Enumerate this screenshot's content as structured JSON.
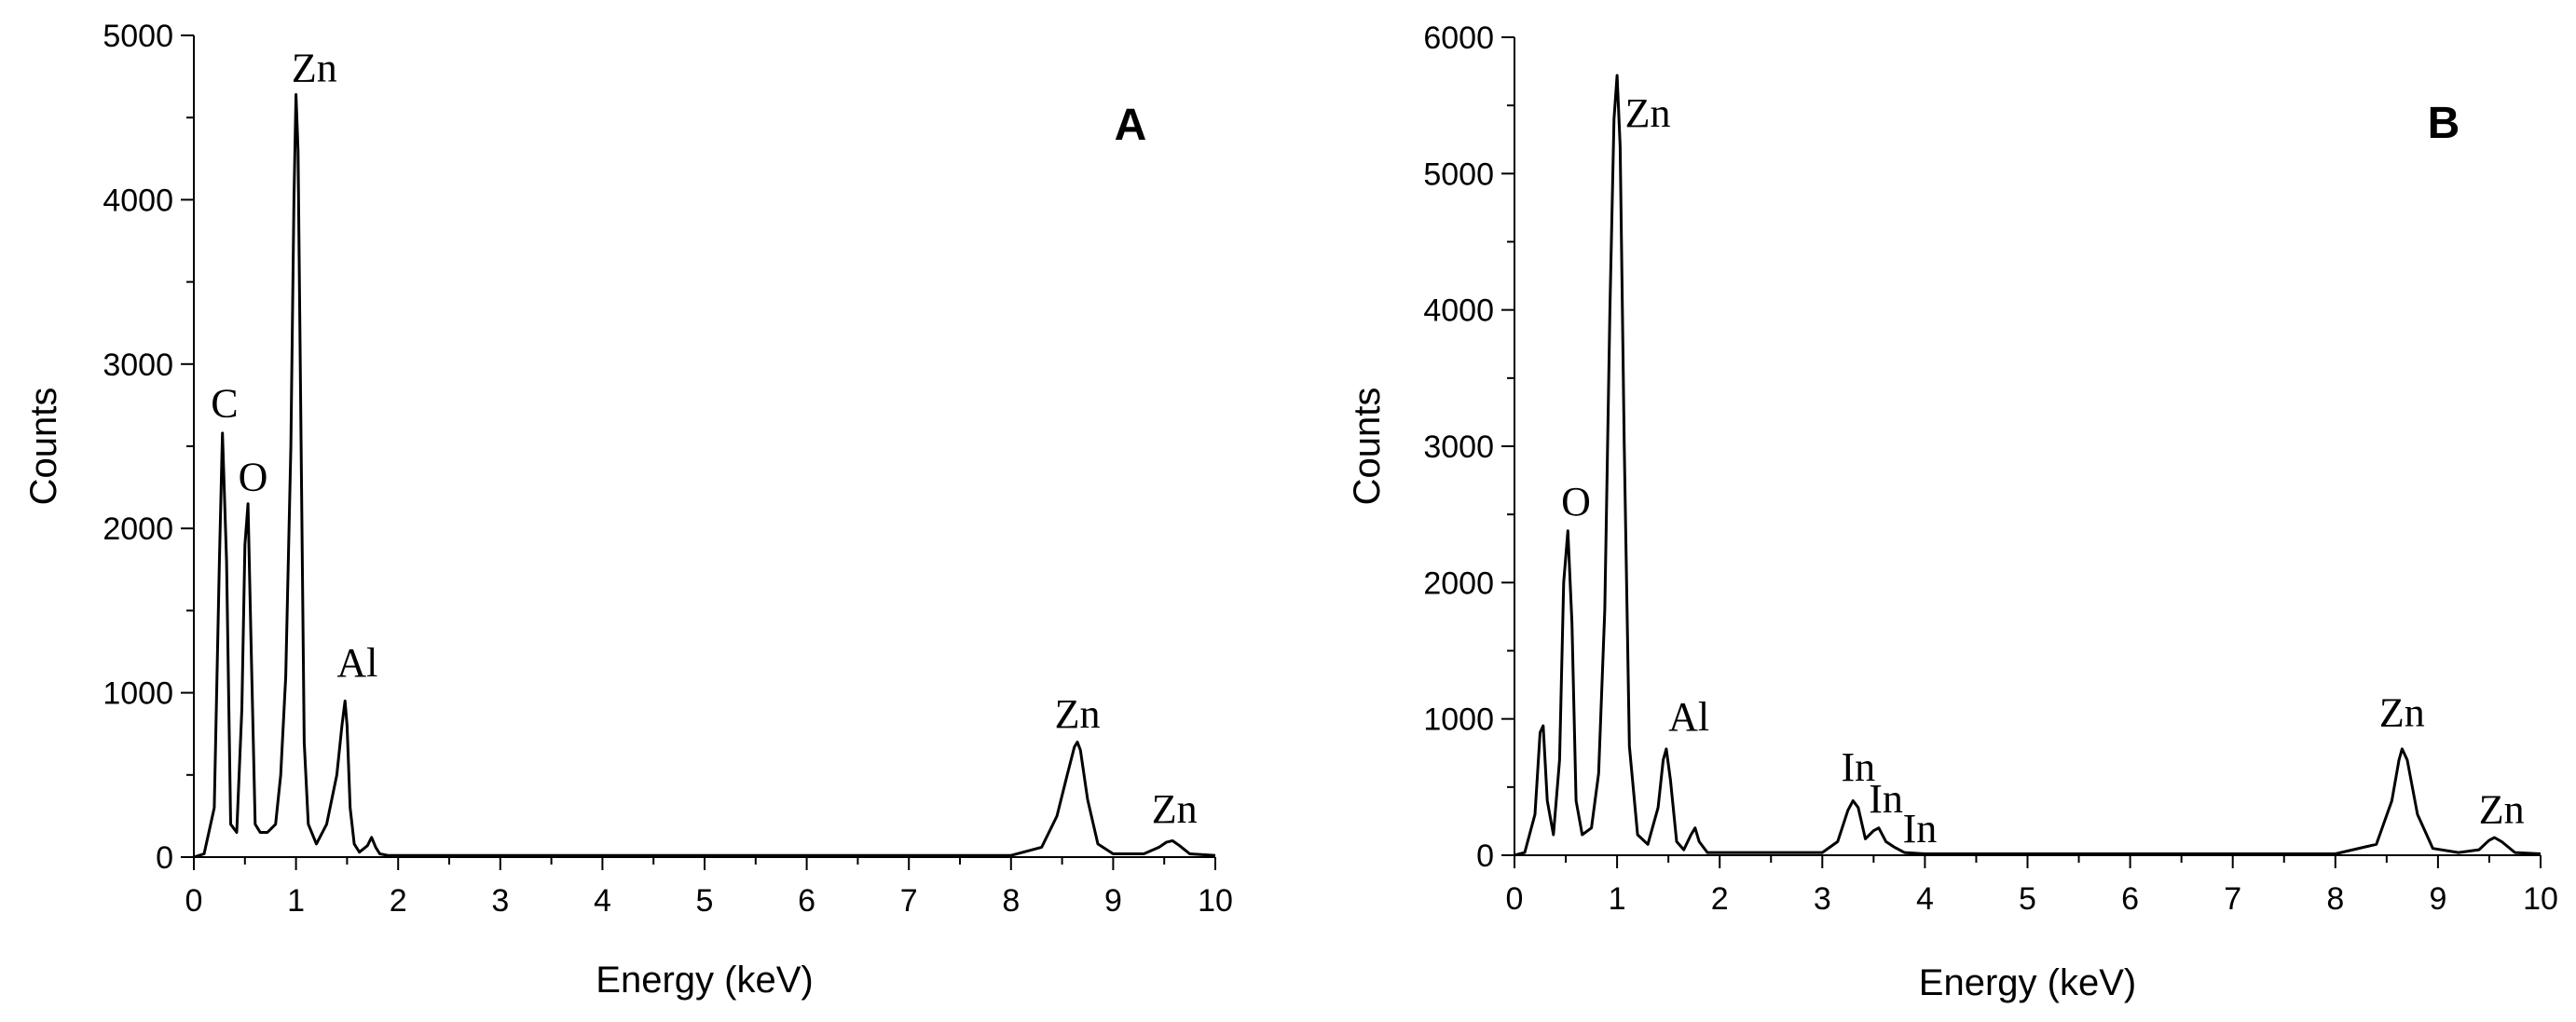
{
  "chart_data": [
    {
      "type": "line",
      "panel_label": "A",
      "xlabel": "Energy (keV)",
      "ylabel": "Counts",
      "xlim": [
        0,
        10
      ],
      "ylim": [
        0,
        5000
      ],
      "xticks": [
        0,
        1,
        2,
        3,
        4,
        5,
        6,
        7,
        8,
        9,
        10
      ],
      "yticks": [
        0,
        1000,
        2000,
        3000,
        4000,
        5000
      ],
      "grid": false,
      "series": [
        {
          "color": "#000000",
          "x": [
            0.0,
            0.1,
            0.2,
            0.25,
            0.28,
            0.32,
            0.36,
            0.42,
            0.47,
            0.5,
            0.53,
            0.56,
            0.6,
            0.65,
            0.72,
            0.8,
            0.85,
            0.9,
            0.95,
            0.98,
            1.0,
            1.02,
            1.05,
            1.08,
            1.12,
            1.2,
            1.3,
            1.4,
            1.45,
            1.48,
            1.5,
            1.53,
            1.57,
            1.62,
            1.7,
            1.74,
            1.78,
            1.82,
            1.9,
            2.0,
            3.0,
            4.0,
            5.0,
            6.0,
            7.0,
            8.0,
            8.3,
            8.45,
            8.55,
            8.62,
            8.65,
            8.68,
            8.75,
            8.85,
            9.0,
            9.3,
            9.45,
            9.52,
            9.58,
            9.65,
            9.75,
            10.0
          ],
          "y": [
            0,
            20,
            300,
            1800,
            2580,
            1800,
            200,
            150,
            900,
            1900,
            2150,
            1300,
            200,
            150,
            150,
            200,
            500,
            1100,
            2500,
            4000,
            4640,
            4300,
            2500,
            700,
            200,
            80,
            200,
            500,
            800,
            950,
            800,
            300,
            80,
            30,
            70,
            120,
            60,
            20,
            10,
            10,
            10,
            10,
            10,
            10,
            10,
            10,
            60,
            250,
            500,
            670,
            700,
            650,
            350,
            80,
            20,
            20,
            60,
            90,
            100,
            70,
            20,
            10
          ]
        }
      ],
      "annotations": [
        {
          "text": "C",
          "x": 0.3,
          "y": 2600
        },
        {
          "text": "O",
          "x": 0.58,
          "y": 2150
        },
        {
          "text": "Zn",
          "x": 1.18,
          "y": 4640
        },
        {
          "text": "Al",
          "x": 1.6,
          "y": 1020
        },
        {
          "text": "Zn",
          "x": 8.65,
          "y": 710
        },
        {
          "text": "Zn",
          "x": 9.6,
          "y": 130
        }
      ]
    },
    {
      "type": "line",
      "panel_label": "B",
      "xlabel": "Energy (keV)",
      "ylabel": "Counts",
      "xlim": [
        0,
        10
      ],
      "ylim": [
        0,
        6000
      ],
      "xticks": [
        0,
        1,
        2,
        3,
        4,
        5,
        6,
        7,
        8,
        9,
        10
      ],
      "yticks": [
        0,
        1000,
        2000,
        3000,
        4000,
        5000,
        6000
      ],
      "grid": false,
      "series": [
        {
          "color": "#000000",
          "x": [
            0.0,
            0.1,
            0.2,
            0.25,
            0.28,
            0.32,
            0.38,
            0.44,
            0.48,
            0.52,
            0.56,
            0.6,
            0.66,
            0.75,
            0.82,
            0.88,
            0.93,
            0.97,
            1.0,
            1.03,
            1.07,
            1.12,
            1.2,
            1.3,
            1.4,
            1.45,
            1.48,
            1.52,
            1.58,
            1.65,
            1.72,
            1.76,
            1.8,
            1.88,
            2.0,
            2.5,
            3.0,
            3.15,
            3.25,
            3.3,
            3.35,
            3.42,
            3.5,
            3.55,
            3.62,
            3.7,
            3.8,
            4.0,
            5.0,
            6.0,
            7.0,
            8.0,
            8.4,
            8.55,
            8.62,
            8.65,
            8.7,
            8.8,
            8.95,
            9.2,
            9.4,
            9.5,
            9.55,
            9.62,
            9.75,
            10.0
          ],
          "y": [
            0,
            20,
            300,
            900,
            950,
            400,
            150,
            700,
            2000,
            2380,
            1700,
            400,
            150,
            200,
            600,
            1800,
            4000,
            5400,
            5720,
            5200,
            3000,
            800,
            150,
            80,
            350,
            700,
            780,
            550,
            100,
            40,
            150,
            200,
            100,
            20,
            20,
            20,
            20,
            100,
            330,
            400,
            350,
            120,
            180,
            200,
            100,
            60,
            20,
            10,
            10,
            10,
            10,
            10,
            80,
            400,
            700,
            780,
            700,
            300,
            50,
            20,
            40,
            110,
            130,
            100,
            20,
            10
          ]
        }
      ],
      "annotations": [
        {
          "text": "O",
          "x": 0.6,
          "y": 2400
        },
        {
          "text": "Zn",
          "x": 1.3,
          "y": 5250
        },
        {
          "text": "Al",
          "x": 1.7,
          "y": 820
        },
        {
          "text": "In",
          "x": 3.35,
          "y": 450
        },
        {
          "text": "In",
          "x": 3.62,
          "y": 220
        },
        {
          "text": "In",
          "x": 3.95,
          "y": 0
        },
        {
          "text": "Zn",
          "x": 8.65,
          "y": 850
        },
        {
          "text": "Zn",
          "x": 9.62,
          "y": 140
        }
      ]
    }
  ]
}
